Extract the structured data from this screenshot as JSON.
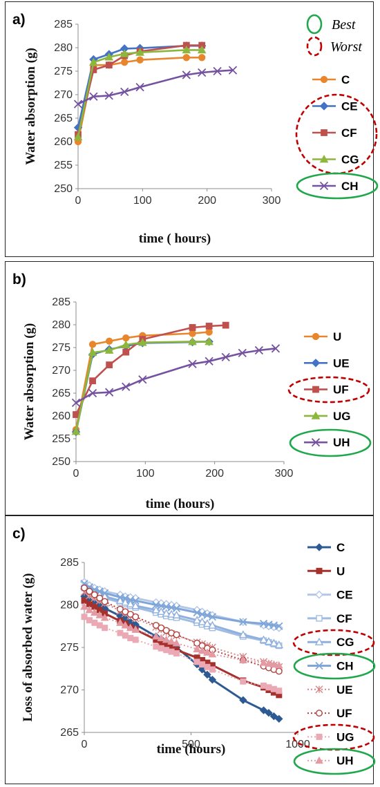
{
  "chart_data": [
    {
      "type": "line",
      "panel_label": "a)",
      "xlabel": "time ( hours)",
      "ylabel": "Water absorption (g)",
      "xlim": [
        0,
        300
      ],
      "ylim": [
        250,
        285
      ],
      "x_ticks": [
        0,
        100,
        200,
        300
      ],
      "y_ticks": [
        250,
        255,
        260,
        265,
        270,
        275,
        280,
        285
      ],
      "grid": false,
      "legend_position": "right",
      "notes": [
        {
          "label": "Best",
          "color": "#1FA84B"
        },
        {
          "label": "Worst",
          "color": "#C00000"
        }
      ],
      "series": [
        {
          "name": "C",
          "color": "#E8862D",
          "marker": "circle",
          "x": [
            0,
            24,
            48,
            72,
            96,
            168,
            192
          ],
          "y": [
            260.0,
            276.3,
            276.3,
            276.9,
            277.4,
            277.9,
            277.9
          ]
        },
        {
          "name": "CE",
          "color": "#4472C4",
          "marker": "diamond",
          "x": [
            0,
            24,
            48,
            72,
            96,
            168,
            192
          ],
          "y": [
            263.0,
            277.5,
            278.6,
            279.8,
            279.9,
            280.4,
            280.4
          ]
        },
        {
          "name": "CF",
          "color": "#C0504D",
          "marker": "square",
          "x": [
            0,
            24,
            48,
            72,
            96,
            168,
            192
          ],
          "y": [
            261.5,
            275.3,
            276.3,
            278.3,
            279.2,
            280.5,
            280.5
          ]
        },
        {
          "name": "CG",
          "color": "#8CB63C",
          "marker": "triangle",
          "x": [
            0,
            24,
            48,
            72,
            96,
            168,
            192
          ],
          "y": [
            261.0,
            276.9,
            278.0,
            278.7,
            279.0,
            279.5,
            279.5
          ]
        },
        {
          "name": "CH",
          "color": "#7452A0",
          "marker": "x",
          "x": [
            0,
            24,
            48,
            72,
            96,
            168,
            192,
            216,
            240
          ],
          "y": [
            268.0,
            269.6,
            269.8,
            270.6,
            271.6,
            274.2,
            274.7,
            275.0,
            275.2
          ]
        }
      ],
      "highlight_best": [
        "CH"
      ],
      "highlight_worst": [
        "CE",
        "CF",
        "CG"
      ]
    },
    {
      "type": "line",
      "panel_label": "b)",
      "xlabel": "time (hours)",
      "ylabel": "Water absorption (g)",
      "xlim": [
        0,
        300
      ],
      "ylim": [
        250,
        285
      ],
      "x_ticks": [
        0,
        100,
        200,
        300
      ],
      "y_ticks": [
        250,
        255,
        260,
        265,
        270,
        275,
        280,
        285
      ],
      "grid": false,
      "legend_position": "right",
      "series": [
        {
          "name": "U",
          "color": "#E8862D",
          "marker": "circle",
          "x": [
            0,
            24,
            48,
            72,
            96,
            168,
            192
          ],
          "y": [
            257.0,
            275.7,
            276.4,
            277.1,
            277.6,
            278.1,
            278.4
          ]
        },
        {
          "name": "UE",
          "color": "#4472C4",
          "marker": "diamond",
          "x": [
            0,
            24,
            48,
            72,
            96,
            168,
            192
          ],
          "y": [
            256.5,
            273.5,
            274.6,
            275.3,
            276.0,
            276.2,
            276.3
          ]
        },
        {
          "name": "UF",
          "color": "#C0504D",
          "marker": "square",
          "x": [
            0,
            24,
            48,
            72,
            96,
            168,
            192,
            216
          ],
          "y": [
            260.3,
            267.7,
            271.2,
            274.0,
            276.8,
            279.4,
            279.7,
            279.9
          ]
        },
        {
          "name": "UG",
          "color": "#8CB63C",
          "marker": "triangle",
          "x": [
            0,
            24,
            48,
            72,
            96,
            168,
            192
          ],
          "y": [
            256.6,
            273.9,
            274.4,
            275.6,
            276.1,
            276.3,
            276.3
          ]
        },
        {
          "name": "UH",
          "color": "#7452A0",
          "marker": "x",
          "x": [
            0,
            24,
            48,
            72,
            96,
            168,
            192,
            216,
            240,
            264,
            288
          ],
          "y": [
            262.9,
            265.0,
            265.2,
            266.4,
            268.0,
            271.4,
            272.0,
            272.9,
            273.8,
            274.4,
            274.8
          ]
        }
      ],
      "highlight_best": [
        "UH"
      ],
      "highlight_worst": [
        "UF"
      ]
    },
    {
      "type": "line",
      "panel_label": "c)",
      "xlabel": "time (hours)",
      "ylabel": "Loss of absorbed water (g)",
      "xlim": [
        0,
        1000
      ],
      "ylim": [
        265,
        285
      ],
      "x_ticks": [
        0,
        500,
        1000
      ],
      "y_ticks": [
        265,
        270,
        275,
        280,
        285
      ],
      "grid": false,
      "legend_position": "right",
      "series": [
        {
          "name": "C",
          "color": "#2E5A94",
          "marker": "diamond",
          "style": "solid",
          "x": [
            0,
            24,
            48,
            72,
            96,
            168,
            192,
            216,
            240,
            336,
            360,
            384,
            408,
            432,
            528,
            552,
            576,
            600,
            744,
            840,
            864,
            888,
            912
          ],
          "y": [
            281.0,
            280.5,
            280.2,
            279.9,
            279.6,
            278.7,
            278.4,
            278.0,
            277.7,
            276.3,
            276.0,
            275.7,
            275.3,
            275.0,
            273.0,
            272.4,
            271.8,
            271.2,
            268.8,
            267.6,
            267.3,
            266.9,
            266.6
          ]
        },
        {
          "name": "U",
          "color": "#A5302C",
          "marker": "square",
          "style": "solid",
          "x": [
            0,
            24,
            48,
            72,
            96,
            168,
            192,
            216,
            240,
            336,
            360,
            384,
            408,
            432,
            528,
            552,
            576,
            600,
            744,
            840,
            864,
            888,
            912
          ],
          "y": [
            280.5,
            280.1,
            279.8,
            279.4,
            279.0,
            278.1,
            277.8,
            277.4,
            277.1,
            275.9,
            275.6,
            275.3,
            275.0,
            274.7,
            273.8,
            273.5,
            273.2,
            272.9,
            271.1,
            270.3,
            270.0,
            269.7,
            269.4
          ]
        },
        {
          "name": "CE",
          "color": "#B4C7E7",
          "marker": "diamond-open",
          "style": "solid",
          "x": [
            0,
            24,
            48,
            72,
            96,
            168,
            192,
            216,
            240,
            336,
            360,
            384,
            408,
            432,
            528,
            552,
            576,
            600,
            744,
            840,
            864,
            888,
            912
          ],
          "y": [
            282.7,
            282.3,
            282.0,
            281.8,
            281.6,
            281.2,
            281.0,
            280.9,
            280.8,
            280.3,
            280.2,
            280.1,
            280.0,
            279.9,
            279.4,
            279.2,
            279.0,
            278.8,
            278.0,
            277.6,
            277.5,
            277.4,
            277.3
          ]
        },
        {
          "name": "CF",
          "color": "#9FBCE3",
          "marker": "square-open",
          "style": "solid",
          "x": [
            0,
            24,
            48,
            72,
            96,
            168,
            192,
            216,
            240,
            336,
            360,
            384,
            408,
            432,
            528,
            552,
            576,
            600,
            744,
            840,
            864,
            888,
            912
          ],
          "y": [
            282.0,
            281.6,
            281.3,
            281.0,
            280.8,
            280.3,
            280.1,
            279.9,
            279.7,
            279.1,
            278.9,
            278.7,
            278.6,
            278.5,
            277.9,
            277.7,
            277.5,
            277.3,
            276.3,
            275.8,
            275.6,
            275.4,
            275.2
          ]
        },
        {
          "name": "CG",
          "color": "#8FB0DE",
          "marker": "triangle-open",
          "style": "solid",
          "x": [
            0,
            24,
            48,
            72,
            96,
            168,
            192,
            216,
            240,
            336,
            360,
            384,
            408,
            432,
            528,
            552,
            576,
            600,
            744,
            840,
            864,
            888,
            912
          ],
          "y": [
            282.2,
            281.8,
            281.5,
            281.2,
            281.0,
            280.5,
            280.3,
            280.1,
            279.9,
            279.4,
            279.2,
            279.0,
            278.9,
            278.8,
            278.2,
            278.0,
            277.8,
            277.6,
            276.5,
            275.9,
            275.7,
            275.5,
            275.3
          ]
        },
        {
          "name": "CH",
          "color": "#7FA6D9",
          "marker": "x",
          "style": "solid",
          "x": [
            0,
            24,
            48,
            72,
            96,
            168,
            192,
            216,
            240,
            336,
            360,
            384,
            408,
            432,
            528,
            552,
            576,
            600,
            744,
            840,
            864,
            888,
            912
          ],
          "y": [
            282.5,
            282.1,
            281.8,
            281.6,
            281.4,
            280.9,
            280.8,
            280.6,
            280.5,
            280.0,
            279.9,
            279.8,
            279.7,
            279.6,
            279.1,
            278.9,
            278.8,
            278.6,
            278.0,
            277.8,
            277.7,
            277.6,
            277.5
          ]
        },
        {
          "name": "UE",
          "color": "#D98585",
          "marker": "asterisk",
          "style": "dotted",
          "x": [
            0,
            24,
            48,
            72,
            96,
            168,
            192,
            216,
            240,
            336,
            360,
            384,
            408,
            432,
            528,
            552,
            576,
            600,
            744,
            840,
            864,
            888,
            912
          ],
          "y": [
            281.5,
            281.1,
            280.8,
            280.5,
            280.2,
            279.3,
            279.0,
            278.7,
            278.4,
            277.4,
            277.1,
            276.8,
            276.6,
            276.4,
            275.6,
            275.4,
            275.2,
            275.0,
            273.9,
            273.3,
            273.1,
            272.9,
            272.7
          ]
        },
        {
          "name": "UF",
          "color": "#B0413E",
          "marker": "circle-open",
          "style": "dotted",
          "x": [
            0,
            24,
            48,
            72,
            96,
            168,
            192,
            216,
            240,
            336,
            360,
            384,
            408,
            432,
            528,
            552,
            576,
            600,
            744,
            840,
            864,
            888,
            912
          ],
          "y": [
            282.0,
            281.6,
            281.2,
            280.8,
            280.4,
            279.5,
            279.2,
            278.9,
            278.6,
            277.6,
            277.3,
            277.0,
            276.7,
            276.5,
            275.5,
            275.2,
            274.9,
            274.7,
            273.5,
            272.8,
            272.6,
            272.4,
            272.2
          ]
        },
        {
          "name": "UG",
          "color": "#EBA9B5",
          "marker": "square",
          "style": "dotted",
          "x": [
            0,
            24,
            48,
            72,
            96,
            168,
            192,
            216,
            240,
            336,
            360,
            384,
            408,
            432,
            528,
            552,
            576,
            600,
            744,
            840,
            864,
            888,
            912
          ],
          "y": [
            278.6,
            278.2,
            277.9,
            277.6,
            277.3,
            276.7,
            276.4,
            276.1,
            275.9,
            275.1,
            274.9,
            274.7,
            274.5,
            274.3,
            273.3,
            273.0,
            272.7,
            272.4,
            271.0,
            270.5,
            270.3,
            270.1,
            269.9
          ]
        },
        {
          "name": "UH",
          "color": "#E39AA3",
          "marker": "triangle",
          "style": "dotted",
          "x": [
            0,
            24,
            48,
            72,
            96,
            168,
            192,
            216,
            240,
            336,
            360,
            384,
            408,
            432,
            528,
            552,
            576,
            600,
            744,
            840,
            864,
            888,
            912
          ],
          "y": [
            279.8,
            279.4,
            279.1,
            278.8,
            278.5,
            277.9,
            277.6,
            277.3,
            277.1,
            276.3,
            276.1,
            275.9,
            275.7,
            275.5,
            274.8,
            274.6,
            274.4,
            274.2,
            273.5,
            273.2,
            273.1,
            273.0,
            272.9
          ]
        }
      ],
      "highlight_best": [
        "CH",
        "UH"
      ],
      "highlight_worst": [
        "CG",
        "UG"
      ]
    }
  ]
}
